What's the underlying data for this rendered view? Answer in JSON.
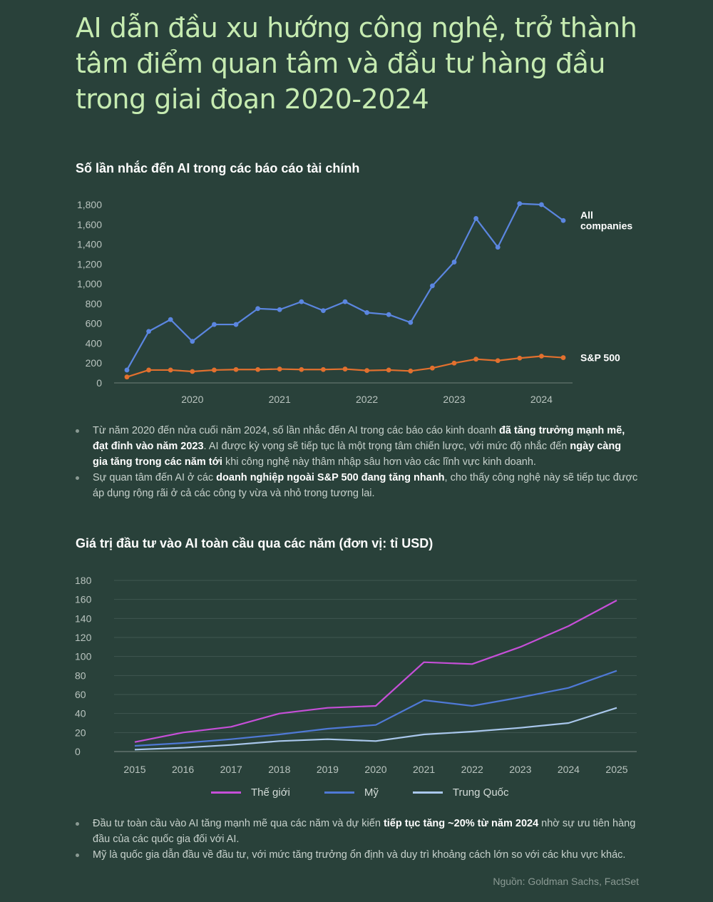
{
  "title_lines": [
    "AI dẫn đầu xu hướng công nghệ, trở thành",
    "tâm điểm quan tâm và đầu tư hàng đầu",
    "trong giai đoạn 2020-2024"
  ],
  "colors": {
    "background": "#29413a",
    "title": "#c6ebb1",
    "all_companies": "#5b86e0",
    "sp500": "#e2702e",
    "the_gioi": "#c64fd8",
    "my": "#4f79d6",
    "trung_quoc": "#a9c7ec"
  },
  "chart_data": [
    {
      "type": "line",
      "title": "Số lần nhắc đến AI trong các báo cáo tài chính",
      "xlabel": "",
      "ylabel": "",
      "ylim": [
        0,
        1800
      ],
      "y_ticks": [
        "0",
        "200",
        "400",
        "600",
        "800",
        "1,000",
        "1,200",
        "1,400",
        "1,600",
        "1,800"
      ],
      "x_tick_labels": [
        "2020",
        "2021",
        "2022",
        "2023",
        "2024"
      ],
      "x_tick_positions": [
        3,
        7,
        11,
        15,
        19
      ],
      "x": [
        0,
        1,
        2,
        3,
        4,
        5,
        6,
        7,
        8,
        9,
        10,
        11,
        12,
        13,
        14,
        15,
        16,
        17,
        18,
        19,
        20
      ],
      "series": [
        {
          "name": "All companies",
          "label_lines": [
            "All",
            "companies"
          ],
          "values": [
            130,
            520,
            640,
            420,
            590,
            590,
            750,
            740,
            820,
            730,
            820,
            710,
            690,
            610,
            980,
            1220,
            1660,
            1370,
            1810,
            1800,
            1640
          ]
        },
        {
          "name": "S&P 500",
          "label_lines": [
            "S&P 500"
          ],
          "values": [
            60,
            130,
            130,
            115,
            130,
            135,
            135,
            140,
            135,
            135,
            140,
            125,
            130,
            120,
            150,
            200,
            240,
            225,
            250,
            270,
            255
          ]
        }
      ],
      "legend": "inline-right",
      "grid": false
    },
    {
      "type": "line",
      "title": "Giá trị đầu tư vào AI toàn cầu qua các năm (đơn vị: tỉ USD)",
      "xlabel": "",
      "ylabel": "",
      "ylim": [
        0,
        180
      ],
      "y_ticks": [
        "0",
        "20",
        "40",
        "60",
        "80",
        "100",
        "120",
        "140",
        "160",
        "180"
      ],
      "categories": [
        "2015",
        "2016",
        "2017",
        "2018",
        "2019",
        "2020",
        "2021",
        "2022",
        "2023",
        "2024",
        "2025"
      ],
      "series": [
        {
          "name": "Thế giới",
          "values": [
            10,
            20,
            26,
            40,
            46,
            48,
            94,
            92,
            110,
            132,
            159
          ]
        },
        {
          "name": "Mỹ",
          "values": [
            6,
            9,
            13,
            18,
            24,
            28,
            54,
            48,
            57,
            67,
            85
          ]
        },
        {
          "name": "Trung Quốc",
          "values": [
            2,
            4,
            7,
            11,
            13,
            11,
            18,
            21,
            25,
            30,
            46
          ]
        }
      ],
      "legend": "bottom",
      "grid": true
    }
  ],
  "notes1": [
    {
      "parts": [
        {
          "t": "Từ năm 2020 đến nửa cuối năm 2024, số lần nhắc đến AI trong các báo cáo kinh doanh ",
          "b": false
        },
        {
          "t": "đã tăng trưởng mạnh mẽ, đạt đỉnh vào năm 2023",
          "b": true
        },
        {
          "t": ". AI được kỳ vọng sẽ tiếp tục là một trọng tâm chiến lược, với mức độ nhắc đến ",
          "b": false
        },
        {
          "t": "ngày càng gia tăng trong các năm tới",
          "b": true
        },
        {
          "t": " khi công nghệ này thâm nhập sâu hơn vào các lĩnh vực kinh doanh.",
          "b": false
        }
      ]
    },
    {
      "parts": [
        {
          "t": "Sự quan tâm đến AI ở các ",
          "b": false
        },
        {
          "t": "doanh nghiệp ngoài S&P 500 đang tăng nhanh",
          "b": true
        },
        {
          "t": ", cho thấy công nghệ này sẽ tiếp tục được áp dụng rộng rãi ở cả các công ty vừa và nhỏ trong tương lai.",
          "b": false
        }
      ]
    }
  ],
  "notes2": [
    {
      "parts": [
        {
          "t": "Đầu tư toàn cầu vào AI tăng mạnh mẽ qua các năm và dự kiến ",
          "b": false
        },
        {
          "t": "tiếp tục tăng ~20% từ năm 2024",
          "b": true
        },
        {
          "t": " nhờ sự ưu tiên hàng đầu của các quốc gia đối với AI.",
          "b": false
        }
      ]
    },
    {
      "parts": [
        {
          "t": "Mỹ là quốc gia dẫn đầu về đầu tư, với mức tăng trưởng ổn định và duy trì khoảng cách lớn so với các khu vực khác.",
          "b": false
        }
      ]
    }
  ],
  "source": "Nguồn: Goldman Sachs, FactSet"
}
